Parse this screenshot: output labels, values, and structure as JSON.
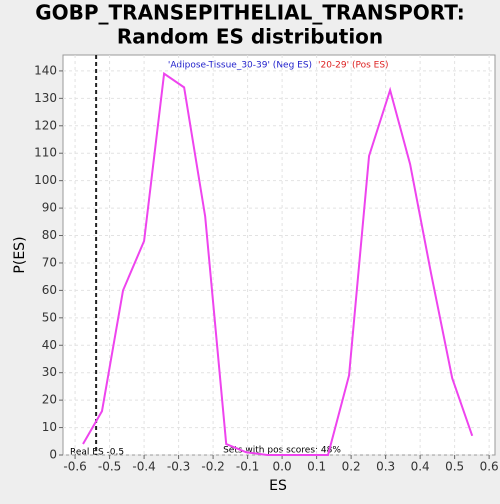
{
  "chart_data": {
    "type": "line",
    "title": "GOBP_TRANSEPITHELIAL_TRANSPORT:",
    "subtitle": "Random ES distribution",
    "x_label": "ES",
    "y_label": "P(ES)",
    "neg_label": "'Adipose-Tissue_30-39' (Neg ES)",
    "pos_label": "'20-29' (Pos ES)",
    "pos_scores_note": "Sets with pos scores: 48%",
    "real_es_label": "Real ES -0.5",
    "real_es": -0.539,
    "x": [
      -0.577,
      -0.522,
      -0.461,
      -0.4,
      -0.342,
      -0.284,
      -0.223,
      -0.162,
      -0.104,
      -0.043,
      0.015,
      0.075,
      0.133,
      0.194,
      0.252,
      0.313,
      0.371,
      0.432,
      0.493,
      0.551
    ],
    "series": [
      {
        "name": "P(ES)",
        "color": "#ee44ee",
        "values": [
          4,
          16,
          60,
          78,
          139,
          134,
          87,
          4,
          1,
          0,
          0,
          0,
          0,
          29,
          109,
          133,
          106,
          66,
          28,
          7
        ]
      }
    ],
    "xlim": [
      -0.635,
      0.617
    ],
    "ylim": [
      0,
      145.8
    ],
    "xticks": [
      -0.6,
      -0.5,
      -0.4,
      -0.3,
      -0.2,
      -0.1,
      {
        "value": 0,
        "label": "0.0"
      },
      0.1,
      0.2,
      0.3,
      0.4,
      0.5,
      0.6
    ],
    "yticks": [
      0,
      10,
      20,
      30,
      40,
      50,
      60,
      70,
      80,
      90,
      100,
      110,
      120,
      130,
      140
    ],
    "grid": true
  }
}
